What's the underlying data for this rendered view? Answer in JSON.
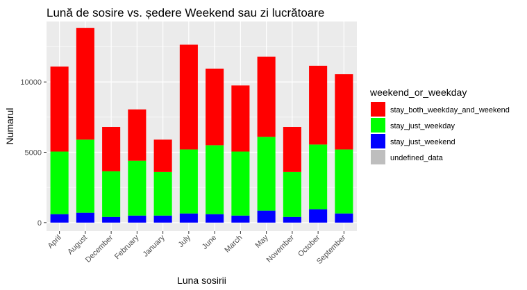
{
  "chart_data": {
    "type": "bar",
    "stacked": true,
    "title": "Lună de sosire vs. ședere Weekend sau zi lucrătoare",
    "xlabel": "Luna sosirii",
    "ylabel": "Numarul",
    "ylim": [
      -600,
      14300
    ],
    "yticks": [
      0,
      5000,
      10000
    ],
    "grid": true,
    "legend_position": "right",
    "legend_title": "weekend_or_weekday",
    "categories": [
      "April",
      "August",
      "December",
      "February",
      "January",
      "July",
      "June",
      "March",
      "May",
      "November",
      "October",
      "September"
    ],
    "series": [
      {
        "name": "stay_just_weekend",
        "color": "#0000ff",
        "values": [
          600,
          700,
          400,
          500,
          500,
          650,
          600,
          500,
          850,
          400,
          950,
          650
        ]
      },
      {
        "name": "stay_just_weekday",
        "color": "#00ff00",
        "values": [
          4450,
          5200,
          3250,
          3900,
          3100,
          4550,
          4900,
          4550,
          5250,
          3200,
          4600,
          4550
        ]
      },
      {
        "name": "stay_both_weekday_and_weekend",
        "color": "#ff0000",
        "values": [
          6050,
          7950,
          3150,
          3650,
          2300,
          7450,
          5450,
          4700,
          5700,
          3200,
          5600,
          5350
        ]
      },
      {
        "name": "undefined_data",
        "color": "#bebebe",
        "values": [
          0,
          0,
          0,
          0,
          0,
          0,
          0,
          0,
          0,
          0,
          0,
          0
        ]
      }
    ],
    "legend_order": [
      "stay_both_weekday_and_weekend",
      "stay_just_weekday",
      "stay_just_weekend",
      "undefined_data"
    ]
  }
}
